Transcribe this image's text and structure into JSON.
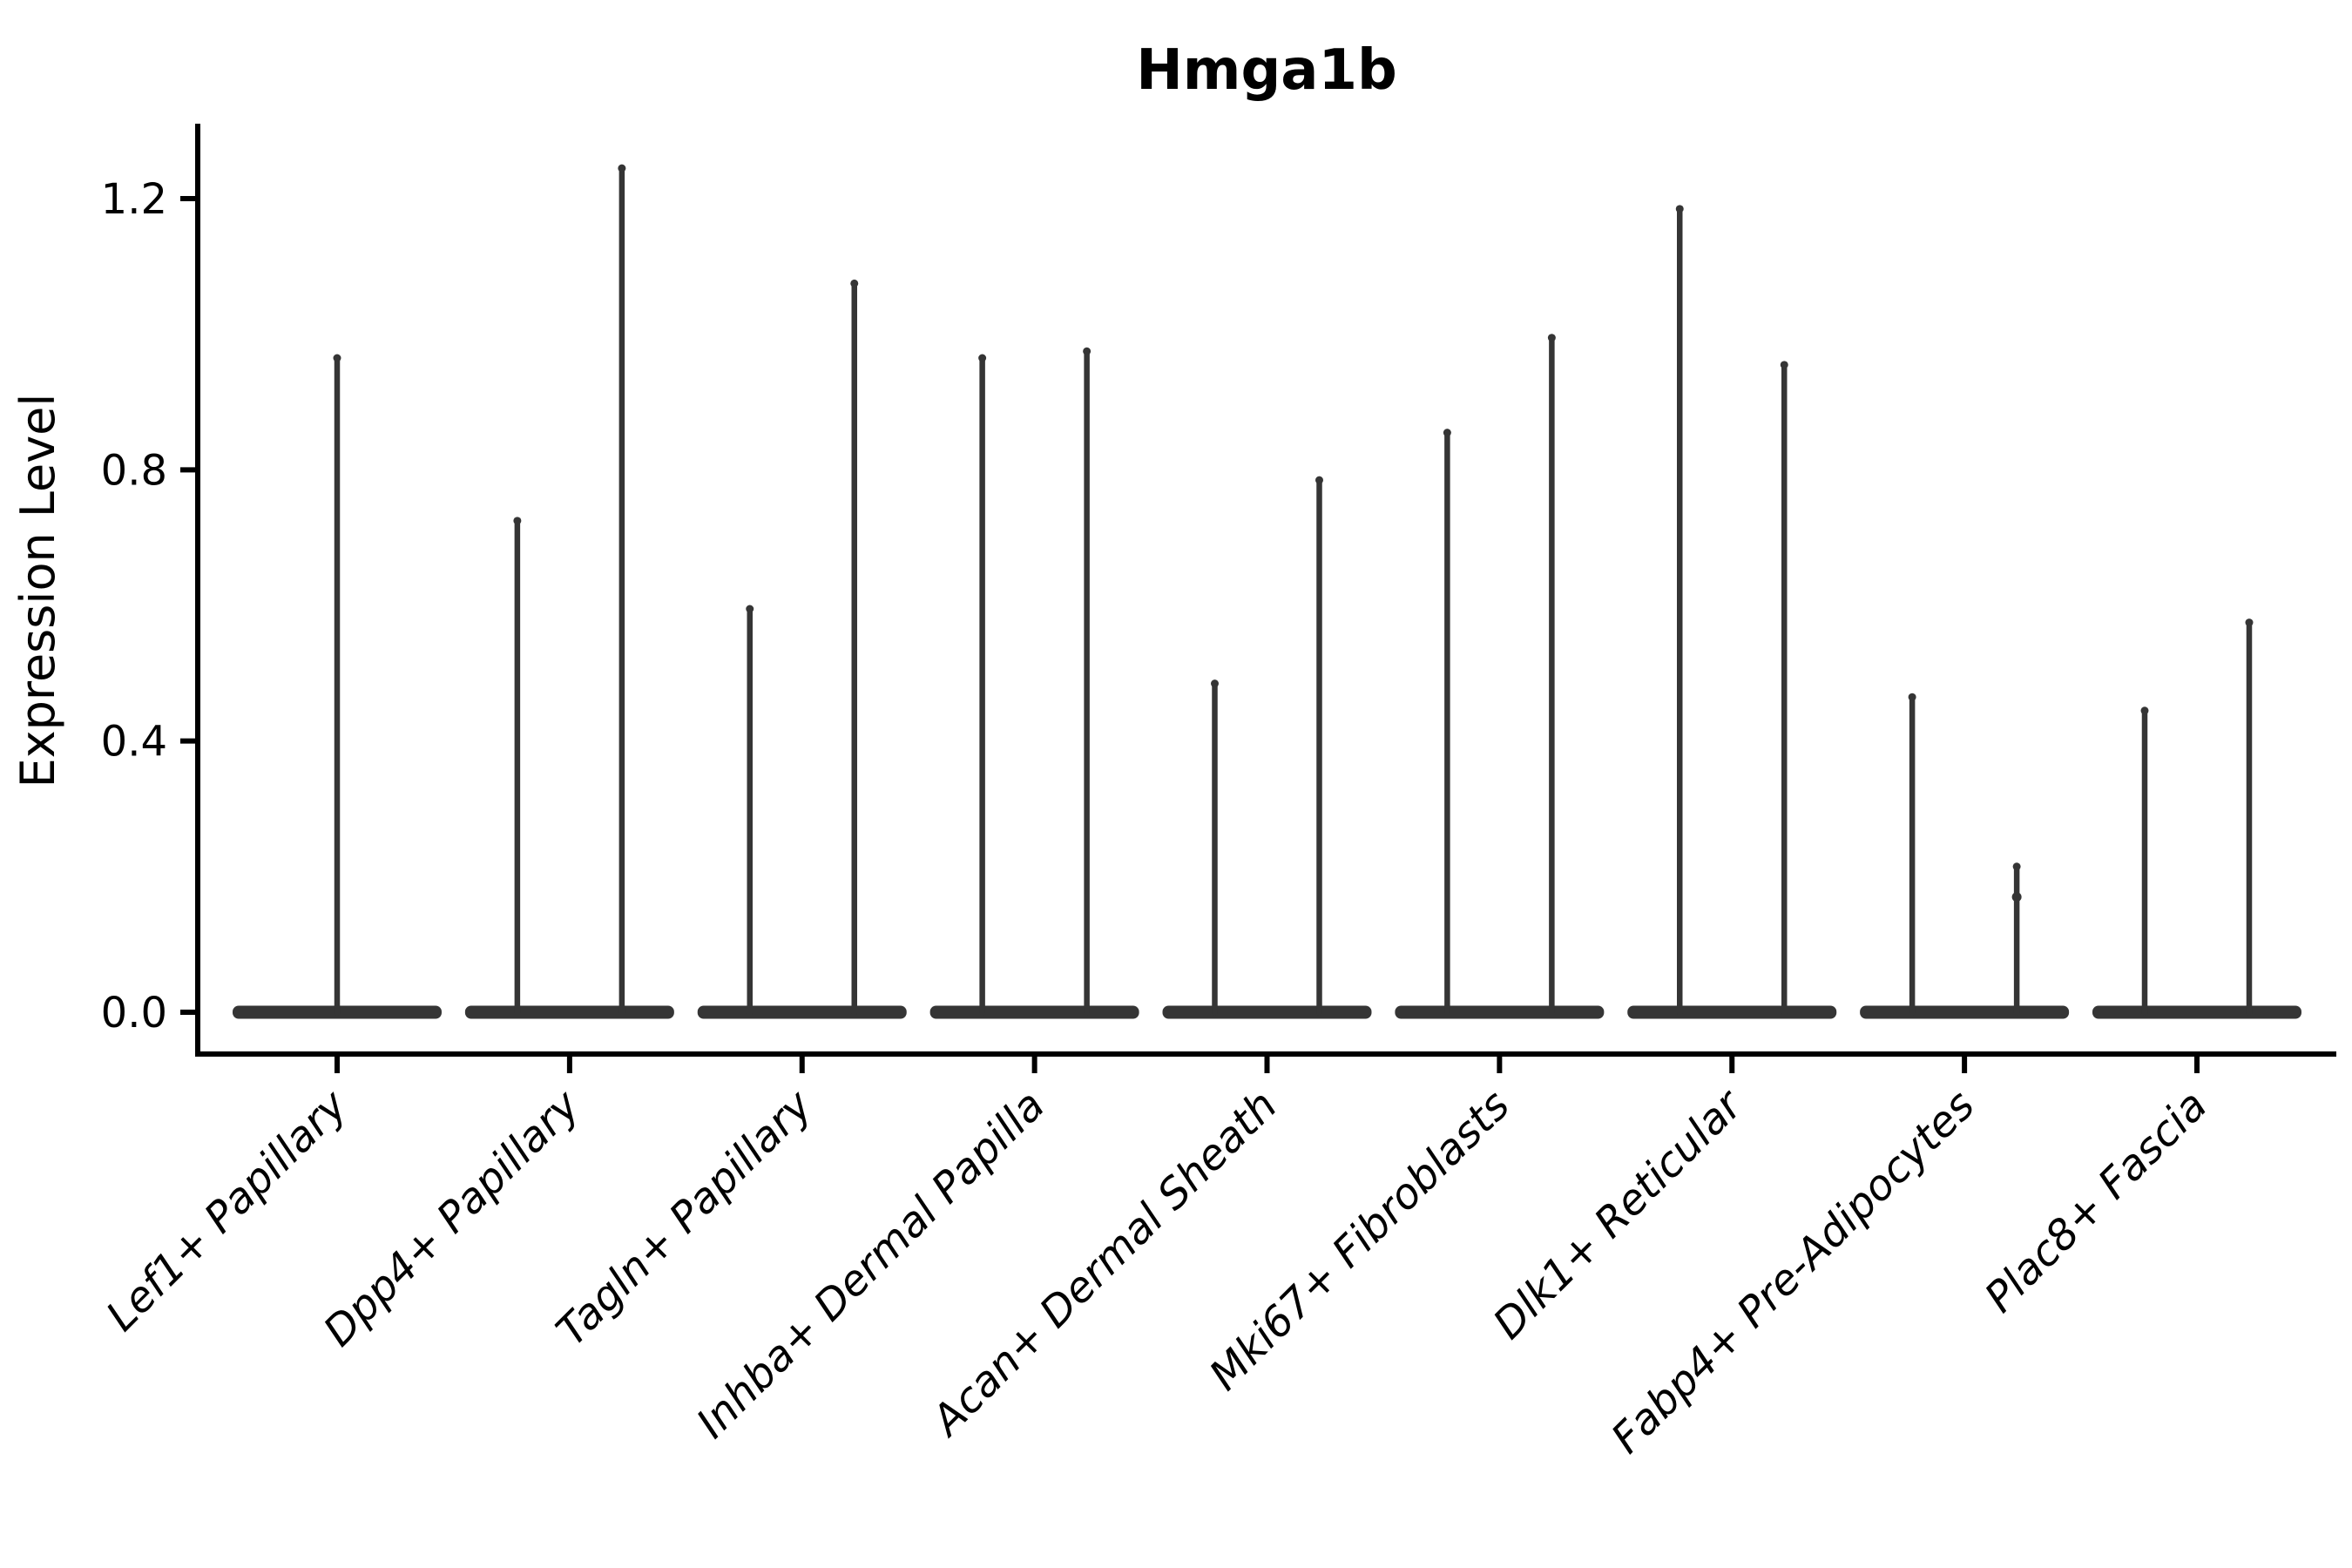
{
  "chart_data": {
    "type": "violin",
    "title": "Hmga1b",
    "xlabel": "",
    "ylabel": "Expression Level",
    "categories": [
      "Lef1+ Papillary",
      "Dpp4+ Papillary",
      "Tagln+ Papillary",
      "Inhba+ Dermal Papilla",
      "Acan+ Dermal Sheath",
      "Mki67+ Fibroblasts",
      "Dlk1+ Reticular",
      "Fabp4+ Pre-Adipocytes",
      "Plac8+ Fascia"
    ],
    "description": "Degenerate violins: dense flat body at expression 0 with thin spikes up to the maximum expression value(s); first category has a single centered violin, all others have two side-by-side violins",
    "violin_max_values": [
      [
        0.97
      ],
      [
        0.73,
        1.25
      ],
      [
        0.6,
        1.08
      ],
      [
        0.97,
        0.98
      ],
      [
        0.49,
        0.79
      ],
      [
        0.86,
        1.0
      ],
      [
        1.19,
        0.96
      ],
      [
        0.47,
        0.22
      ],
      [
        0.45,
        0.58
      ]
    ],
    "body_value": 0.0,
    "extra_bumps": [
      {
        "category_index": 7,
        "violin_index": 1,
        "value": 0.17
      }
    ],
    "yticks": [
      "0.0",
      "0.4",
      "0.8",
      "1.2"
    ],
    "ytick_values": [
      0.0,
      0.4,
      0.8,
      1.2
    ],
    "ylim": [
      -0.062,
      1.31
    ],
    "grid": "off",
    "legend": "none",
    "xtick_rotation_deg": 45,
    "colors": {
      "violin": "#353535",
      "spine": "#000000",
      "text": "#000000",
      "background": "#ffffff"
    }
  }
}
